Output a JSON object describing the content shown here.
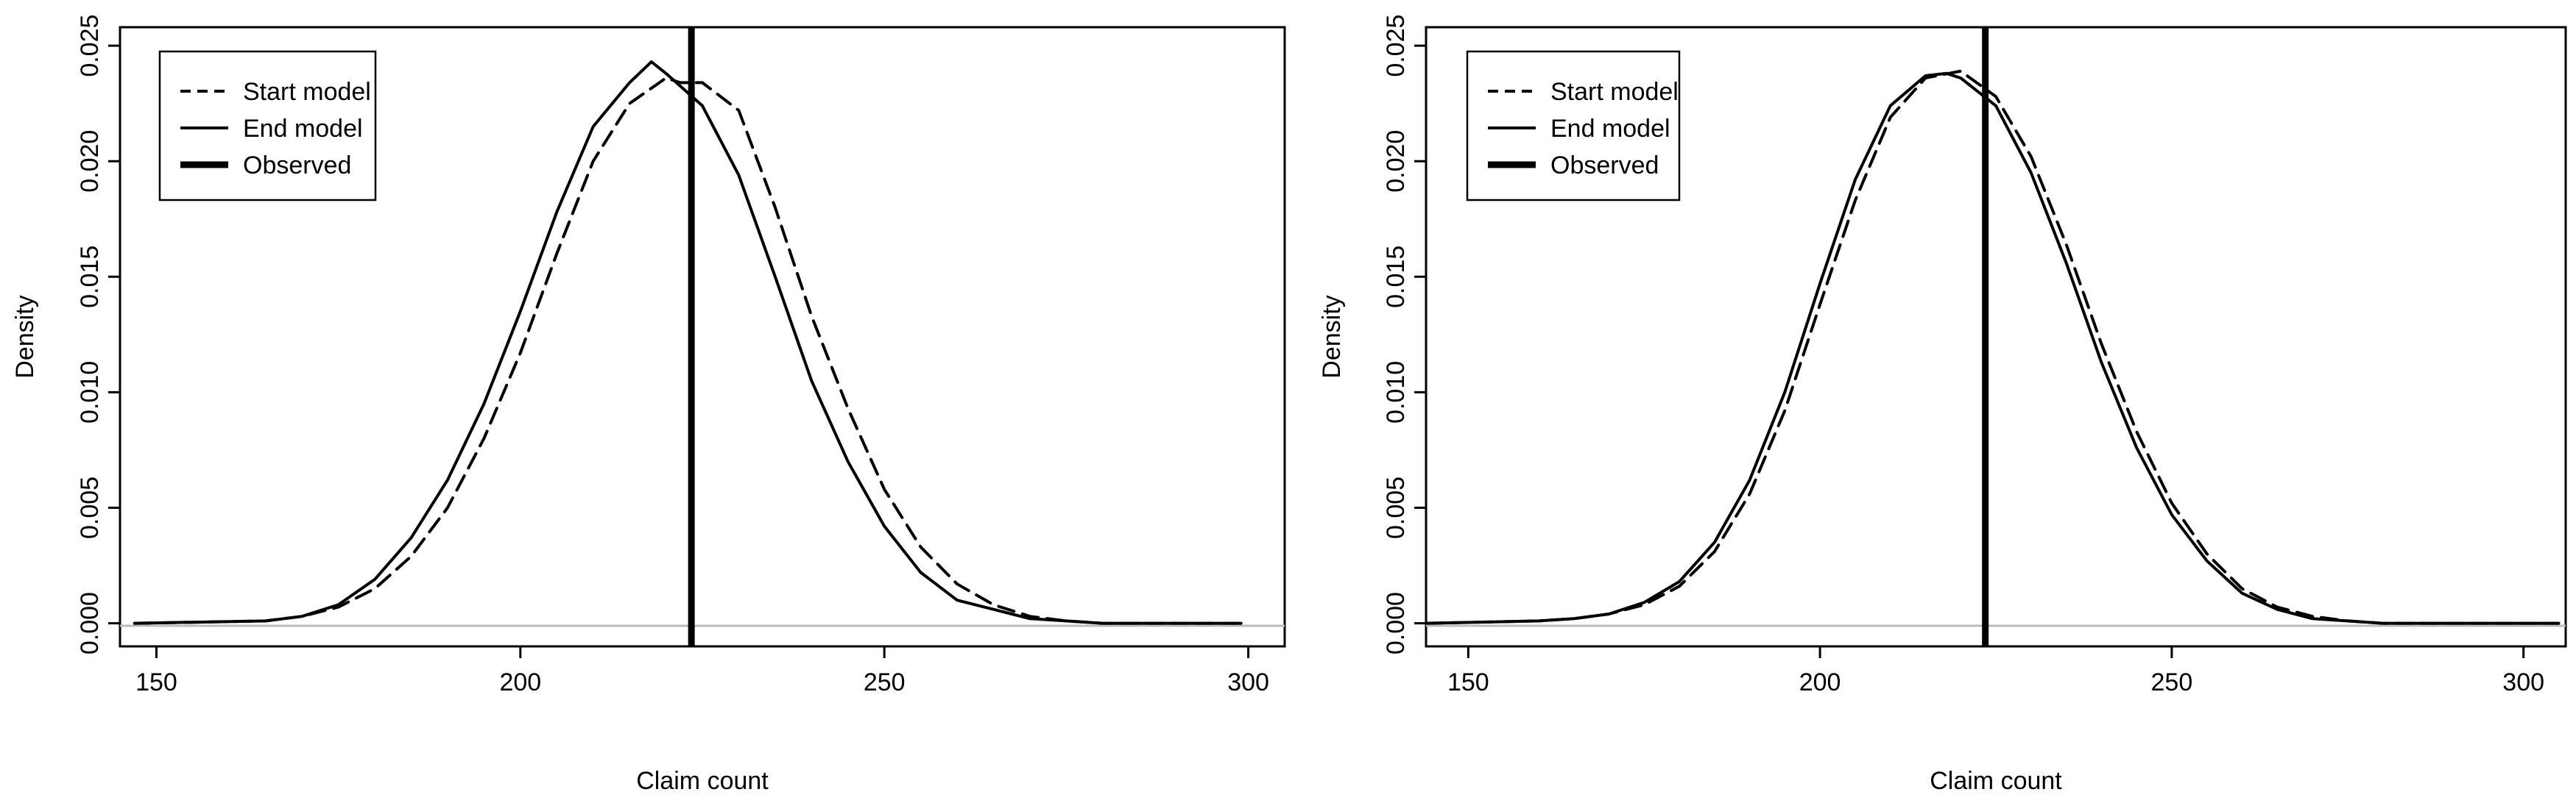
{
  "chart_data": [
    {
      "type": "line",
      "title": "",
      "xlabel": "Claim count",
      "ylabel": "Density",
      "xlim": [
        145,
        305
      ],
      "ylim": [
        -0.001,
        0.0258
      ],
      "xticks": [
        "150",
        "200",
        "250",
        "300"
      ],
      "yticks": [
        "0.000",
        "0.005",
        "0.010",
        "0.015",
        "0.020",
        "0.025"
      ],
      "grid": false,
      "legend": {
        "placement": "top-left",
        "entries": [
          "Start model",
          "End model",
          "Observed"
        ]
      },
      "observed": 223.5,
      "series": [
        {
          "name": "Start model",
          "style": "dashed",
          "x": [
            147,
            165,
            170,
            175,
            180,
            185,
            190,
            195,
            200,
            205,
            210,
            215,
            220,
            222,
            225,
            230,
            235,
            240,
            245,
            250,
            255,
            260,
            265,
            270,
            275,
            280,
            290,
            299
          ],
          "y": [
            0,
            0.0001,
            0.0003,
            0.0007,
            0.0015,
            0.0029,
            0.005,
            0.008,
            0.0117,
            0.016,
            0.02,
            0.0225,
            0.0236,
            0.0234,
            0.0234,
            0.0222,
            0.018,
            0.0133,
            0.0093,
            0.0058,
            0.0033,
            0.0017,
            0.0008,
            0.0003,
            0.0001,
            0,
            0,
            0
          ]
        },
        {
          "name": "End model",
          "style": "solid",
          "x": [
            147,
            165,
            170,
            175,
            180,
            185,
            190,
            195,
            200,
            205,
            210,
            215,
            218,
            220,
            225,
            230,
            235,
            240,
            245,
            250,
            255,
            260,
            265,
            270,
            275,
            280,
            290,
            299
          ],
          "y": [
            0,
            0.0001,
            0.0003,
            0.0008,
            0.0019,
            0.0037,
            0.0062,
            0.0095,
            0.0135,
            0.0178,
            0.0215,
            0.0234,
            0.0243,
            0.0238,
            0.0224,
            0.0194,
            0.015,
            0.0105,
            0.007,
            0.0042,
            0.0022,
            0.001,
            0.0006,
            0.0002,
            0.0001,
            0,
            0,
            0
          ]
        }
      ]
    },
    {
      "type": "line",
      "title": "",
      "xlabel": "Claim count",
      "ylabel": "Density",
      "xlim": [
        144,
        306
      ],
      "ylim": [
        -0.001,
        0.0258
      ],
      "xticks": [
        "150",
        "200",
        "250",
        "300"
      ],
      "yticks": [
        "0.000",
        "0.005",
        "0.010",
        "0.015",
        "0.020",
        "0.025"
      ],
      "grid": false,
      "legend": {
        "placement": "top-left",
        "entries": [
          "Start model",
          "End model",
          "Observed"
        ]
      },
      "observed": 223.5,
      "series": [
        {
          "name": "Start model",
          "style": "dashed",
          "x": [
            144,
            160,
            165,
            170,
            175,
            180,
            185,
            190,
            195,
            200,
            205,
            210,
            215,
            220,
            225,
            230,
            235,
            240,
            245,
            250,
            255,
            260,
            265,
            270,
            275,
            280,
            290,
            305
          ],
          "y": [
            0,
            0.0001,
            0.0002,
            0.0004,
            0.0008,
            0.0016,
            0.0031,
            0.0056,
            0.0092,
            0.0138,
            0.0183,
            0.0219,
            0.0236,
            0.0239,
            0.0228,
            0.0202,
            0.0164,
            0.0121,
            0.0083,
            0.0052,
            0.003,
            0.0015,
            0.0007,
            0.0003,
            0.0001,
            0,
            0,
            0
          ]
        },
        {
          "name": "End model",
          "style": "solid",
          "x": [
            144,
            160,
            165,
            170,
            175,
            180,
            185,
            190,
            195,
            200,
            205,
            210,
            215,
            218,
            220,
            225,
            230,
            235,
            240,
            245,
            250,
            255,
            260,
            265,
            270,
            275,
            280,
            290,
            305
          ],
          "y": [
            0,
            0.0001,
            0.0002,
            0.0004,
            0.0009,
            0.0018,
            0.0035,
            0.0062,
            0.01,
            0.0147,
            0.0192,
            0.0224,
            0.0237,
            0.0238,
            0.0236,
            0.0224,
            0.0195,
            0.0156,
            0.0113,
            0.0076,
            0.0047,
            0.0027,
            0.0013,
            0.0006,
            0.0002,
            0.0001,
            0,
            0,
            0
          ]
        }
      ]
    }
  ]
}
